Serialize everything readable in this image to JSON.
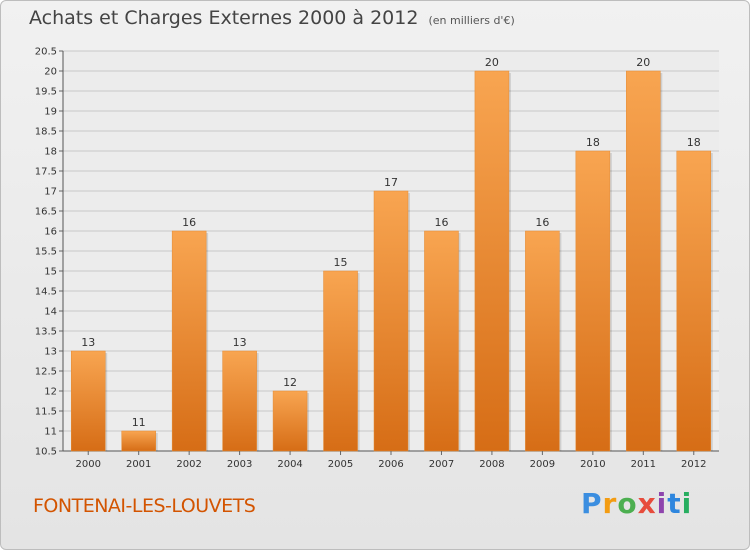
{
  "header": {
    "title": "Achats et Charges Externes 2000 à 2012",
    "subtitle": "(en milliers d'€)"
  },
  "footer": {
    "city": "FONTENAI-LES-LOUVETS",
    "logo": "Proxiti"
  },
  "colors": {
    "bar_top": "#f8a551",
    "bar_bottom": "#d66d16",
    "grid": "#c8c8c8"
  },
  "chart_data": {
    "type": "bar",
    "title": "Achats et Charges Externes 2000 à 2012",
    "subtitle": "(en milliers d'€)",
    "categories": [
      "2000",
      "2001",
      "2002",
      "2003",
      "2004",
      "2005",
      "2006",
      "2007",
      "2008",
      "2009",
      "2010",
      "2011",
      "2012"
    ],
    "values": [
      13,
      11,
      16,
      13,
      12,
      15,
      17,
      16,
      20,
      16,
      18,
      20,
      18
    ],
    "value_labels": [
      "13",
      "11",
      "16",
      "13",
      "12",
      "15",
      "17",
      "16",
      "20",
      "16",
      "18",
      "20",
      "18"
    ],
    "xlabel": "",
    "ylabel": "",
    "ylim": [
      10.5,
      20.5
    ],
    "yticks": [
      "10.5",
      "11",
      "11.5",
      "12",
      "12.5",
      "13",
      "13.5",
      "14",
      "14.5",
      "15",
      "15.5",
      "16",
      "16.5",
      "17",
      "17.5",
      "18",
      "18.5",
      "19",
      "19.5",
      "20",
      "20.5"
    ],
    "grid": true,
    "legend": "none"
  }
}
